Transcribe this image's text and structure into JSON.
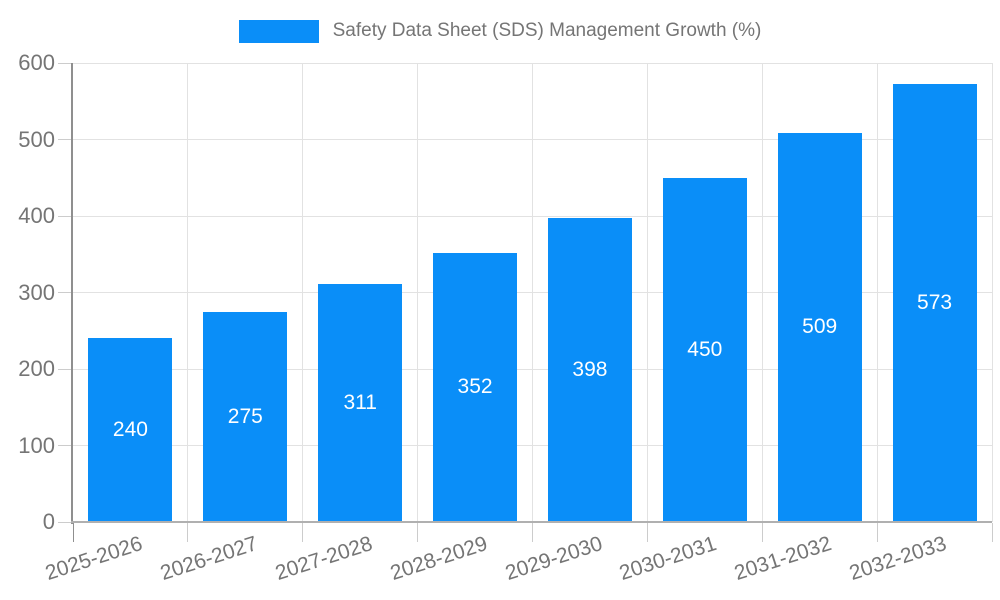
{
  "legend": {
    "label": "Safety Data Sheet (SDS) Management Growth (%)"
  },
  "chart_data": {
    "type": "bar",
    "title": "Safety Data Sheet (SDS) Management Growth (%)",
    "categories": [
      "2025-2026",
      "2026-2027",
      "2027-2028",
      "2028-2029",
      "2029-2030",
      "2030-2031",
      "2031-2032",
      "2032-2033"
    ],
    "values": [
      240,
      275,
      311,
      352,
      398,
      450,
      509,
      573
    ],
    "value_labels": [
      "240",
      "275",
      "311",
      "352",
      "398",
      "450",
      "509",
      "573"
    ],
    "xlabel": "",
    "ylabel": "",
    "ylim": [
      0,
      600
    ],
    "yticks": [
      0,
      100,
      200,
      300,
      400,
      500,
      600
    ],
    "ytick_labels": [
      "0",
      "100",
      "200",
      "300",
      "400",
      "500",
      "600"
    ],
    "grid": true,
    "legend_position": "top-center",
    "value_label_position": "center-of-bar"
  },
  "colors": {
    "bar": "#0a8ef8",
    "grid": "#e2e2e2",
    "y_axis_line": "#8f8f8f",
    "x_axis_line": "#b0b0b0",
    "tick_mark": "#cccccc",
    "tick_text": "#757575",
    "legend_text": "#757575",
    "value_text": "#ffffff",
    "background": "#ffffff"
  }
}
